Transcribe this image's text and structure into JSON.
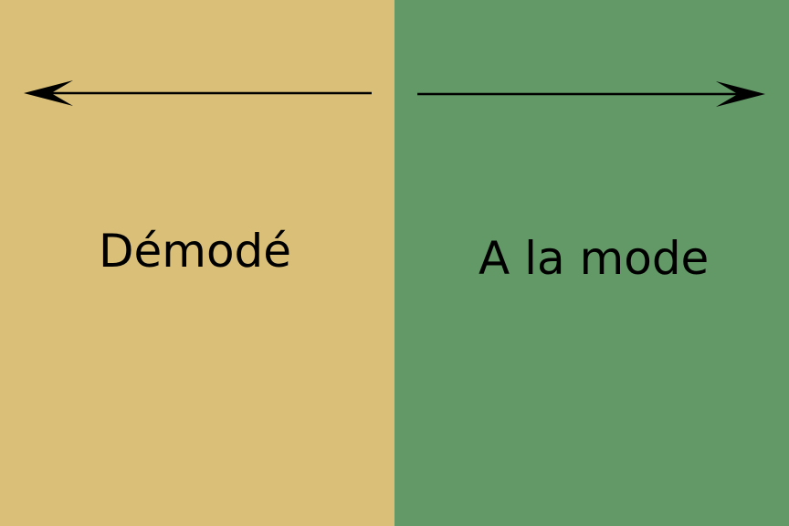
{
  "panels": {
    "left": {
      "label": "Démodé",
      "color": "#d9bf77",
      "arrow_direction": "left"
    },
    "right": {
      "label": "A la mode",
      "color": "#639867",
      "arrow_direction": "right"
    }
  }
}
